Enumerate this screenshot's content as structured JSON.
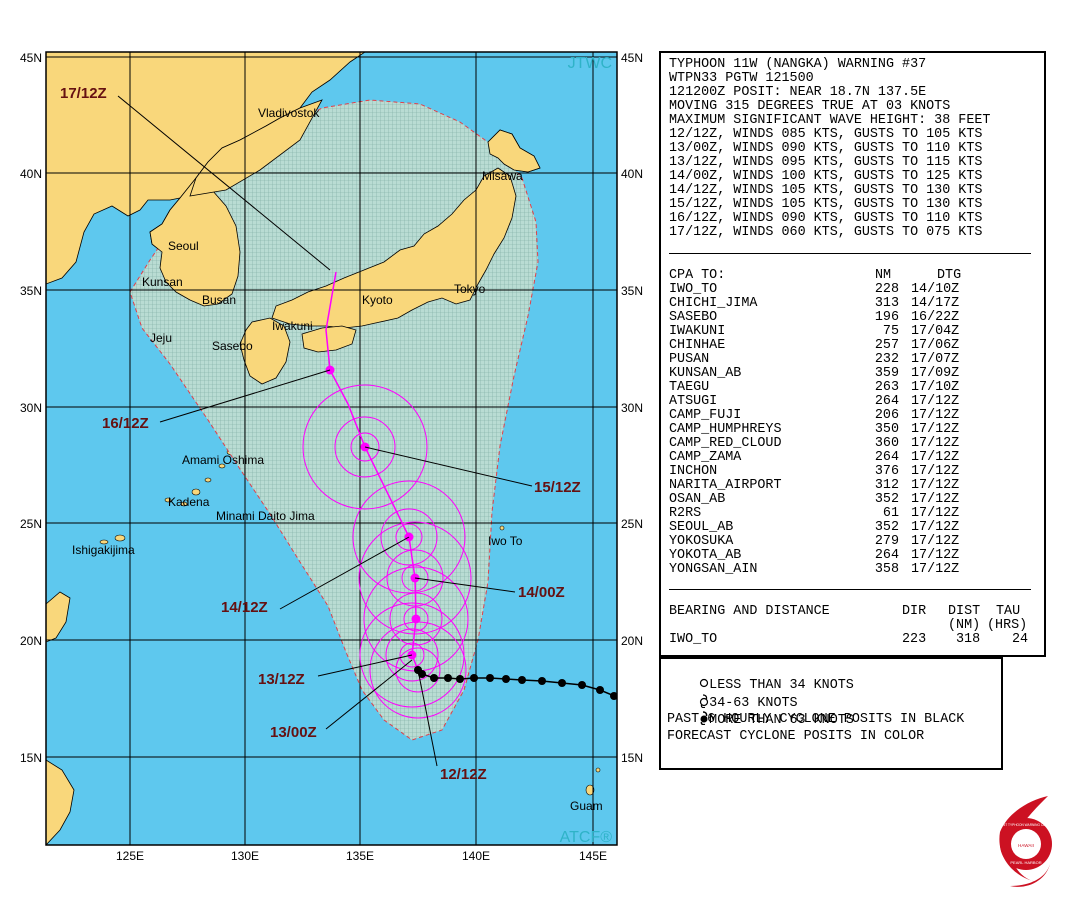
{
  "map": {
    "left_lat_labels": [
      "45N",
      "40N",
      "35N",
      "30N",
      "25N",
      "20N",
      "15N"
    ],
    "right_lat_labels": [
      "45N",
      "40N",
      "35N",
      "30N",
      "25N",
      "20N",
      "15N"
    ],
    "lon_labels": [
      "125E",
      "130E",
      "135E",
      "140E",
      "145E"
    ],
    "watermark_top": "JTWC",
    "watermark_bottom": "ATCF®",
    "colors": {
      "ocean": "#5ec8ee",
      "land": "#f9d77b",
      "danger_area": "#b8d8d0",
      "track": "#ff00ff",
      "past_track": "#000000",
      "label": "#661111"
    },
    "places": [
      {
        "name": "Vladivostok"
      },
      {
        "name": "Misawa"
      },
      {
        "name": "Seoul"
      },
      {
        "name": "Kunsan"
      },
      {
        "name": "Busan"
      },
      {
        "name": "Jeju"
      },
      {
        "name": "Sasebo"
      },
      {
        "name": "Iwakuni"
      },
      {
        "name": "Kyoto"
      },
      {
        "name": "Tokyo"
      },
      {
        "name": "Amami Oshima"
      },
      {
        "name": "Kadena"
      },
      {
        "name": "Minami Daito Jima"
      },
      {
        "name": "Ishigakijima"
      },
      {
        "name": "Iwo To"
      },
      {
        "name": "Guam"
      }
    ],
    "forecast_labels": [
      "17/12Z",
      "16/12Z",
      "15/12Z",
      "14/12Z",
      "14/00Z",
      "13/12Z",
      "13/00Z",
      "12/12Z"
    ]
  },
  "warning": {
    "header_lines": [
      "TYPHOON 11W (NANGKA) WARNING #37",
      "WTPN33 PGTW 121500",
      "121200Z POSIT: NEAR 18.7N 137.5E",
      "MOVING 315 DEGREES TRUE AT 03 KNOTS",
      "MAXIMUM SIGNIFICANT WAVE HEIGHT: 38 FEET",
      "12/12Z, WINDS 085 KTS, GUSTS TO 105 KTS",
      "13/00Z, WINDS 090 KTS, GUSTS TO 110 KTS",
      "13/12Z, WINDS 095 KTS, GUSTS TO 115 KTS",
      "14/00Z, WINDS 100 KTS, GUSTS TO 125 KTS",
      "14/12Z, WINDS 105 KTS, GUSTS TO 130 KTS",
      "15/12Z, WINDS 105 KTS, GUSTS TO 130 KTS",
      "16/12Z, WINDS 090 KTS, GUSTS TO 110 KTS",
      "17/12Z, WINDS 060 KTS, GUSTS TO 075 KTS"
    ],
    "cpa_header": {
      "to": "CPA TO:",
      "nm": "NM",
      "dtg": "DTG"
    },
    "cpa_rows": [
      {
        "name": "IWO_TO",
        "nm": "228",
        "dtg": "14/10Z"
      },
      {
        "name": "CHICHI_JIMA",
        "nm": "313",
        "dtg": "14/17Z"
      },
      {
        "name": "SASEBO",
        "nm": "196",
        "dtg": "16/22Z"
      },
      {
        "name": "IWAKUNI",
        "nm": "75",
        "dtg": "17/04Z"
      },
      {
        "name": "CHINHAE",
        "nm": "257",
        "dtg": "17/06Z"
      },
      {
        "name": "PUSAN",
        "nm": "232",
        "dtg": "17/07Z"
      },
      {
        "name": "KUNSAN_AB",
        "nm": "359",
        "dtg": "17/09Z"
      },
      {
        "name": "TAEGU",
        "nm": "263",
        "dtg": "17/10Z"
      },
      {
        "name": "ATSUGI",
        "nm": "264",
        "dtg": "17/12Z"
      },
      {
        "name": "CAMP_FUJI",
        "nm": "206",
        "dtg": "17/12Z"
      },
      {
        "name": "CAMP_HUMPHREYS",
        "nm": "350",
        "dtg": "17/12Z"
      },
      {
        "name": "CAMP_RED_CLOUD",
        "nm": "360",
        "dtg": "17/12Z"
      },
      {
        "name": "CAMP_ZAMA",
        "nm": "264",
        "dtg": "17/12Z"
      },
      {
        "name": "INCHON",
        "nm": "376",
        "dtg": "17/12Z"
      },
      {
        "name": "NARITA_AIRPORT",
        "nm": "312",
        "dtg": "17/12Z"
      },
      {
        "name": "OSAN_AB",
        "nm": "352",
        "dtg": "17/12Z"
      },
      {
        "name": "R2RS",
        "nm": "61",
        "dtg": "17/12Z"
      },
      {
        "name": "SEOUL_AB",
        "nm": "352",
        "dtg": "17/12Z"
      },
      {
        "name": "YOKOSUKA",
        "nm": "279",
        "dtg": "17/12Z"
      },
      {
        "name": "YOKOTA_AB",
        "nm": "264",
        "dtg": "17/12Z"
      },
      {
        "name": "YONGSAN_AIN",
        "nm": "358",
        "dtg": "17/12Z"
      }
    ],
    "bearing": {
      "title": "BEARING AND DISTANCE",
      "dir_h": "DIR",
      "dist_h": "DIST",
      "tau_h": "TAU",
      "dist_unit": "(NM)",
      "tau_unit": "(HRS)",
      "name": "IWO_TO",
      "dir": "223",
      "dist": "318",
      "tau": "24"
    }
  },
  "legend": {
    "less": "LESS THAN 34 KNOTS",
    "mid": "34-63 KNOTS",
    "more": "MORE THAN 63 KNOTS",
    "past": "PAST 6 HOURLY CYCLONE POSITS IN BLACK",
    "forecast": "FORECAST CYCLONE POSITS IN COLOR"
  },
  "logo": {
    "ring_text": "JOINT TYPHOON WARNING CENTER",
    "bottom_text": "PEARL HARBOR",
    "state": "HAWAII"
  }
}
